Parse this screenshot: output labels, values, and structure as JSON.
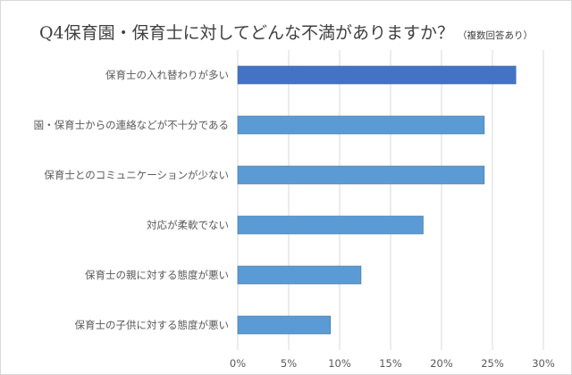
{
  "chart_data": {
    "type": "bar",
    "orientation": "horizontal",
    "title": "Q4保育園・保育士に対してどんな不満がありますか？",
    "subtitle": "（複数回答あり）",
    "categories": [
      "保育士の入れ替わりが多い",
      "園・保育士からの連絡などが不十分である",
      "保育士とのコミュニケーションが少ない",
      "対応が柔軟でない",
      "保育士の親に対する態度が悪い",
      "保育士の子供に対する態度が悪い"
    ],
    "values": [
      27.3,
      24.2,
      24.2,
      18.2,
      12.1,
      9.1
    ],
    "xlim": [
      0,
      30
    ],
    "xticks": [
      "0%",
      "5%",
      "10%",
      "15%",
      "20%",
      "25%",
      "30%"
    ],
    "xlabel": "",
    "ylabel": "",
    "grid": true,
    "colors": {
      "bar": "#5b9bd5",
      "bar_highlight": "#4472c4",
      "grid": "#d9d9d9",
      "text": "#595959"
    }
  }
}
